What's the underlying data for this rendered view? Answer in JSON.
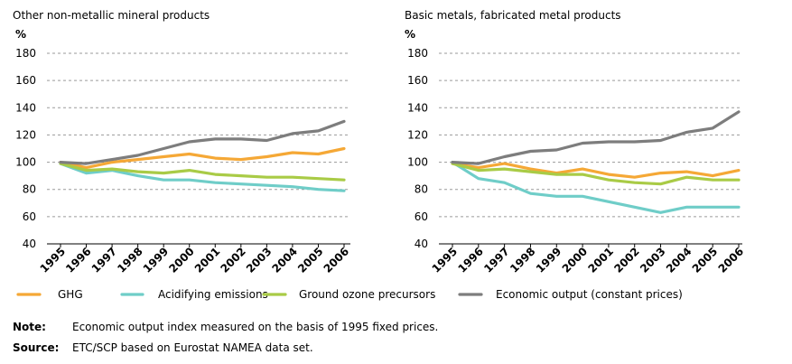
{
  "chart_data": [
    {
      "type": "line",
      "title": "Other non-metallic mineral products",
      "ylabel": "%",
      "ylim": [
        40,
        180
      ],
      "yticks": [
        40,
        60,
        80,
        100,
        120,
        140,
        160,
        180
      ],
      "x": [
        "1995",
        "1996",
        "1997",
        "1998",
        "1999",
        "2000",
        "2001",
        "2002",
        "2003",
        "2004",
        "2005",
        "2006"
      ],
      "series": [
        {
          "name": "GHG",
          "values": [
            100,
            96,
            100,
            102,
            104,
            106,
            103,
            102,
            104,
            107,
            106,
            110
          ]
        },
        {
          "name": "Acidifying emissions",
          "values": [
            99,
            92,
            94,
            90,
            87,
            87,
            85,
            84,
            83,
            82,
            80,
            79
          ]
        },
        {
          "name": "Ground ozone precursors",
          "values": [
            99,
            94,
            95,
            93,
            92,
            94,
            91,
            90,
            89,
            89,
            88,
            87
          ]
        },
        {
          "name": "Economic output (constant prices)",
          "values": [
            100,
            99,
            102,
            105,
            110,
            115,
            117,
            117,
            116,
            121,
            123,
            130
          ]
        }
      ],
      "grid": true
    },
    {
      "type": "line",
      "title": "Basic metals, fabricated metal products",
      "ylabel": "%",
      "ylim": [
        40,
        180
      ],
      "yticks": [
        40,
        60,
        80,
        100,
        120,
        140,
        160,
        180
      ],
      "x": [
        "1995",
        "1996",
        "1997",
        "1998",
        "1999",
        "2000",
        "2001",
        "2002",
        "2003",
        "2004",
        "2005",
        "2006"
      ],
      "series": [
        {
          "name": "GHG",
          "values": [
            99,
            96,
            99,
            95,
            92,
            95,
            91,
            89,
            92,
            93,
            90,
            94
          ]
        },
        {
          "name": "Acidifying emissions",
          "values": [
            100,
            88,
            85,
            77,
            75,
            75,
            71,
            67,
            63,
            67,
            67,
            67
          ]
        },
        {
          "name": "Ground ozone precursors",
          "values": [
            99,
            94,
            95,
            93,
            91,
            91,
            87,
            85,
            84,
            89,
            87,
            87
          ]
        },
        {
          "name": "Economic output (constant prices)",
          "values": [
            100,
            99,
            104,
            108,
            109,
            114,
            115,
            115,
            116,
            122,
            125,
            137
          ]
        }
      ],
      "grid": true
    }
  ],
  "legend": [
    {
      "label": "GHG",
      "color": "#f5a836"
    },
    {
      "label": "Acidifying emissions",
      "color": "#6fcdc8"
    },
    {
      "label": "Ground ozone precursors",
      "color": "#a9cb46"
    },
    {
      "label": "Economic output (constant prices)",
      "color": "#7d7d7d"
    }
  ],
  "note": {
    "label": "Note:",
    "text": "Economic output index measured on the basis of 1995 fixed prices."
  },
  "source": {
    "label": "Source:",
    "text": "ETC/SCP based on Eurostat NAMEA data set."
  }
}
